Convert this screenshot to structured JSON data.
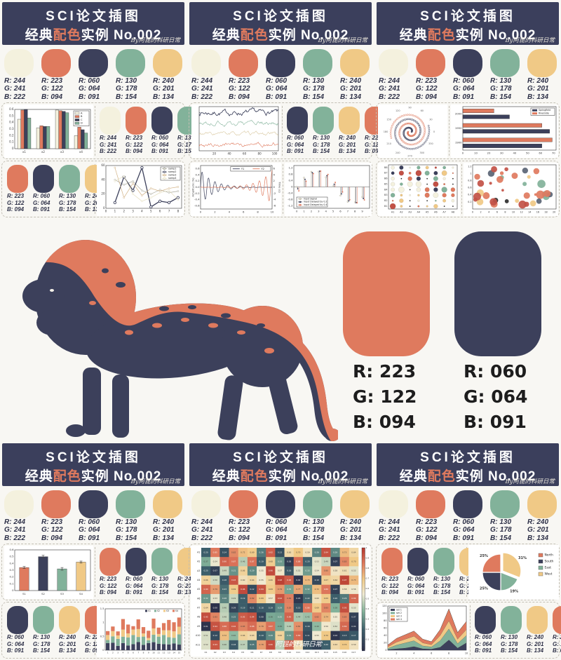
{
  "header": {
    "line1": "SCI论文插图",
    "line2_pre": "经典",
    "line2_hl": "配色",
    "line2_post": "实例 No.002",
    "watermark": "By阿昆的科研日常"
  },
  "palette": {
    "cream": {
      "hex": "#F4F1DE",
      "rgb": [
        "R: 244",
        "G: 241",
        "B: 222"
      ]
    },
    "coral": {
      "hex": "#DF7A5E",
      "rgb": [
        "R: 223",
        "G: 122",
        "B: 094"
      ]
    },
    "navy": {
      "hex": "#3C405B",
      "rgb": [
        "R: 060",
        "G: 064",
        "B: 091"
      ]
    },
    "green": {
      "hex": "#82B29A",
      "rgb": [
        "R: 130",
        "G: 178",
        "B: 154"
      ]
    },
    "gold": {
      "hex": "#F0C986",
      "rgb": [
        "R: 240",
        "G: 201",
        "B: 134"
      ]
    }
  },
  "panel_swatches": {
    "top_full": [
      "cream",
      "coral",
      "navy",
      "green",
      "gold"
    ],
    "g1": [
      "cream",
      "coral",
      "navy",
      "green"
    ],
    "g2": [
      "coral",
      "navy",
      "green",
      "gold"
    ],
    "g3": [
      "navy",
      "green",
      "gold",
      "coral"
    ]
  },
  "featured": {
    "items": [
      {
        "key": "coral",
        "rgb": [
          "R: 223",
          "G: 122",
          "B: 094"
        ]
      },
      {
        "key": "navy",
        "rgb": [
          "R: 060",
          "G: 064",
          "B: 091"
        ]
      }
    ]
  },
  "chart_data": [
    {
      "id": "tl_bar",
      "type": "grouped_bar",
      "categories": [
        "x1",
        "x2",
        "x3",
        "x4"
      ],
      "ylim": [
        0,
        0.6
      ],
      "yticks": [
        0,
        0.1,
        0.2,
        0.3,
        0.4,
        0.5,
        0.6
      ],
      "series": [
        {
          "name": "A",
          "color": "#F4F1DE",
          "values": [
            0.45,
            0.32,
            0.59,
            0.2
          ]
        },
        {
          "name": "B",
          "color": "#DF7A5E",
          "values": [
            0.59,
            0.35,
            0.58,
            0.33
          ]
        },
        {
          "name": "C",
          "color": "#3C405B",
          "values": [
            0.6,
            0.34,
            0.57,
            0.29
          ]
        },
        {
          "name": "D",
          "color": "#82B29A",
          "values": [
            0.47,
            0.34,
            0.55,
            0.24
          ]
        }
      ]
    },
    {
      "id": "tl_lines",
      "type": "line_markers",
      "x": [
        1,
        2,
        3,
        4,
        5,
        6,
        7,
        8
      ],
      "ylim": [
        0,
        60
      ],
      "yticks": [
        0,
        20,
        40,
        60
      ],
      "xticks": [
        0,
        1,
        2,
        3,
        4,
        5,
        6,
        7,
        8
      ],
      "series": [
        {
          "name": "samp1",
          "color": "#a9a99b",
          "values": [
            40,
            33,
            38,
            25,
            20,
            26,
            22,
            24
          ]
        },
        {
          "name": "samp2",
          "color": "#3C405B",
          "bold": true,
          "values": [
            8,
            44,
            25,
            57,
            2,
            10,
            8,
            15
          ]
        },
        {
          "name": "samp3",
          "color": "#d2b285",
          "values": [
            57,
            15,
            35,
            18,
            28,
            24,
            28,
            30
          ]
        },
        {
          "name": "samp4",
          "color": "#e6e0c2",
          "values": [
            38,
            45,
            20,
            10,
            15,
            22,
            25,
            12
          ]
        }
      ]
    },
    {
      "id": "tm_signals",
      "type": "noisy_lines",
      "seed": 7,
      "n": 110,
      "xticks": [
        20,
        40,
        60,
        80,
        100
      ],
      "bands": [
        {
          "color": "#3C405B",
          "base": 0.86,
          "amp": 0.07
        },
        {
          "color": "#82B29A",
          "base": 0.62,
          "amp": 0.06
        },
        {
          "color": "#d8c79e",
          "base": 0.38,
          "amp": 0.05
        },
        {
          "color": "#DF7A5E",
          "base": 0.13,
          "amp": 0.06
        }
      ]
    },
    {
      "id": "tm_osc",
      "type": "osc",
      "xlim": [
        0,
        10
      ],
      "xticks": [
        0,
        2,
        4,
        6,
        8,
        10
      ],
      "yticks_left": [
        -0.6,
        -0.4,
        -0.2,
        0,
        0.2,
        0.4,
        0.6
      ],
      "yticks_right": [
        -6,
        -4,
        -2,
        0,
        2,
        4,
        6
      ],
      "ylabel_left": "Amplitude (%)",
      "ylabel_right": "Time (s)",
      "legend": [
        "Y1",
        "Y2"
      ],
      "colors": [
        "#3C405B",
        "#DF7A5E"
      ],
      "decay": 0.55,
      "freq": 7,
      "amp": 0.55
    },
    {
      "id": "tm_stem",
      "type": "stem",
      "xticks": [
        0,
        1,
        2,
        3,
        4,
        5,
        6,
        7,
        8,
        9
      ],
      "yticks": [
        -1.2,
        -0.8,
        -0.4,
        0,
        0.4,
        0.8,
        1.2
      ],
      "legend": [
        "Input Signal",
        "Input Delayed by 0.2",
        "Input Delayed by 0.4"
      ],
      "colors": [
        "#b5af99",
        "#3C405B",
        "#DF7A5E"
      ],
      "series": [
        [
          0,
          0.58,
          0.95,
          0.96,
          0.61,
          0.04,
          -0.55,
          -0.94,
          -0.97,
          -0.64
        ],
        [
          -0.12,
          0.48,
          0.9,
          0.99,
          0.71,
          0.17,
          -0.44,
          -0.88,
          -0.99,
          -0.73
        ],
        [
          -0.25,
          0.36,
          0.84,
          1.0,
          0.79,
          0.29,
          -0.32,
          -0.81,
          -1.0,
          -0.82
        ]
      ]
    },
    {
      "id": "tr_polar",
      "type": "polar_spiral",
      "labels": [
        0,
        30,
        60,
        90,
        120,
        150,
        180,
        210,
        240,
        270,
        300,
        330
      ],
      "colors": [
        "#3C405B",
        "#DF7A5E"
      ]
    },
    {
      "id": "tr_barh",
      "type": "barh",
      "categories": [
        "1900",
        "1950",
        "2000"
      ],
      "xticks": [
        0,
        10,
        20,
        30,
        40,
        50,
        60,
        70
      ],
      "series": [
        {
          "name": "Springfield",
          "color": "#3C405B",
          "values": [
            61,
            67,
            36
          ]
        },
        {
          "name": "Riverside",
          "color": "#DF7A5E",
          "values": [
            69,
            61,
            24
          ]
        }
      ]
    },
    {
      "id": "tr_balloon",
      "type": "balloon",
      "seed": 11,
      "xlabels": [
        "A1",
        "A2",
        "A3",
        "A4",
        "A5",
        "A6",
        "A7",
        "A8"
      ],
      "ylabels": [
        "B1",
        "B2",
        "B3",
        "B4",
        "B5",
        "B6",
        "B7",
        "B8"
      ],
      "colors": [
        "#DF7A5E",
        "#c25146",
        "#82B29A",
        "#F4F1DE",
        "#F0C986",
        "#3C405B"
      ]
    },
    {
      "id": "tr_bubble",
      "type": "bubble",
      "seed": 5,
      "n": 38,
      "xlim": [
        0,
        20
      ],
      "ylim": [
        0,
        1.2
      ],
      "xticks": [
        0,
        2,
        4,
        6,
        8,
        10,
        12,
        14,
        16,
        18,
        20
      ],
      "yticks": [
        0.2,
        0.4,
        0.6,
        0.8,
        1,
        1.2
      ],
      "colors": [
        "#DF7A5E",
        "#c25146",
        "#F0C986",
        "#82B29A",
        "#5a6474",
        "#2e2e2e"
      ]
    },
    {
      "id": "bl_err",
      "type": "err_bar",
      "categories": [
        "S1",
        "S2",
        "S3",
        "S4"
      ],
      "values": [
        0.34,
        0.5,
        0.32,
        0.42
      ],
      "errors": [
        0.015,
        0.02,
        0.02,
        0.015
      ],
      "colors": [
        "#DF7A5E",
        "#3C405B",
        "#82B29A",
        "#F0C986"
      ],
      "ylim": [
        0,
        0.6
      ],
      "yticks": [
        0,
        0.1,
        0.2,
        0.3,
        0.4,
        0.5,
        0.6
      ]
    },
    {
      "id": "bl_stack",
      "type": "stacked_bar",
      "seed": 3,
      "n": 15,
      "ylim": [
        0,
        1.5
      ],
      "yticks": [
        0,
        0.5,
        1,
        1.5
      ],
      "legend": [
        "S1",
        "S2",
        "S3",
        "S4"
      ],
      "colors": [
        "#3C405B",
        "#82B29A",
        "#F0C986",
        "#DF7A5E"
      ]
    },
    {
      "id": "bm_heat",
      "type": "heatmap",
      "seed": 9,
      "rows": [
        "A1",
        "A2",
        "A3",
        "A4",
        "A5",
        "A6",
        "A7",
        "A8",
        "A9",
        "A10",
        "A11"
      ],
      "cols": [
        "K1",
        "K2",
        "K3",
        "K4",
        "K5",
        "K6",
        "K7",
        "K8",
        "K9",
        "K10",
        "K11",
        "K12",
        "K13",
        "K14",
        "K15",
        "K16",
        "K17"
      ],
      "colorbar_ticks": [
        1,
        0.9,
        0.8,
        0.7,
        0.6,
        0.5,
        0.4,
        0.3,
        0.2,
        0.1
      ],
      "watermark": "阿昆的科研日常"
    },
    {
      "id": "br_pie",
      "type": "pie",
      "slices": [
        {
          "name": "West",
          "pct": "31%",
          "value": 31,
          "color": "#F0C986",
          "explode": true
        },
        {
          "name": "East",
          "pct": "19%",
          "value": 19,
          "color": "#82B29A"
        },
        {
          "name": "South",
          "pct": "25%",
          "value": 25,
          "color": "#3C405B"
        },
        {
          "name": "North",
          "pct": "25%",
          "value": 25,
          "color": "#DF7A5E"
        }
      ],
      "legend": [
        {
          "name": "North",
          "color": "#DF7A5E"
        },
        {
          "name": "South",
          "color": "#3C405B"
        },
        {
          "name": "East",
          "color": "#82B29A"
        },
        {
          "name": "West",
          "color": "#F0C986"
        }
      ]
    },
    {
      "id": "br_area",
      "type": "stacked_area",
      "x": [
        1,
        2,
        3,
        4,
        5,
        6,
        7,
        8,
        9,
        10
      ],
      "ylim": [
        0,
        120
      ],
      "yticks": [
        0,
        20,
        40,
        60,
        80,
        100,
        120
      ],
      "xticks": [
        2,
        4,
        6,
        8,
        10
      ],
      "legend": [
        "set 1",
        "set 2",
        "set 3",
        "set 4"
      ],
      "series": [
        {
          "name": "set 1",
          "color": "#3C405B",
          "values": [
            2,
            4,
            6,
            10,
            4,
            3,
            8,
            28,
            6,
            20
          ]
        },
        {
          "name": "set 2",
          "color": "#82B29A",
          "values": [
            3,
            10,
            14,
            16,
            8,
            6,
            18,
            30,
            12,
            20
          ]
        },
        {
          "name": "set 3",
          "color": "#F0C986",
          "values": [
            4,
            8,
            10,
            12,
            8,
            6,
            14,
            22,
            12,
            16
          ]
        },
        {
          "name": "set 4",
          "color": "#DF7A5E",
          "values": [
            5,
            10,
            12,
            14,
            10,
            8,
            16,
            32,
            18,
            22
          ]
        }
      ]
    }
  ]
}
